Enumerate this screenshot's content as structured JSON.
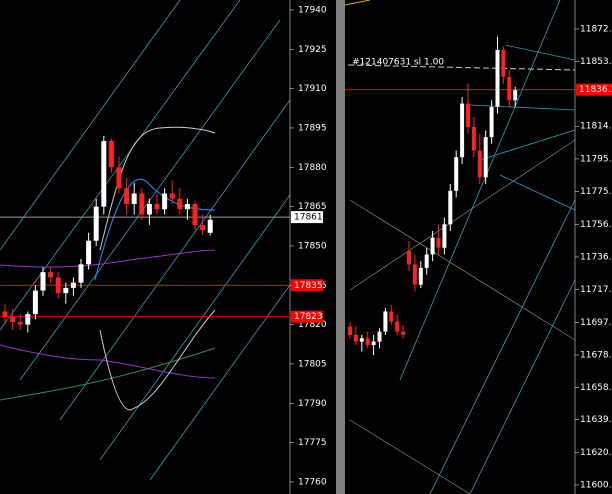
{
  "panels": [
    {
      "ylim": [
        17755.4,
        17943.8
      ],
      "yticks": [
        17940,
        17925,
        17910,
        17895,
        17880,
        17865,
        17850,
        17835,
        17820,
        17805,
        17790,
        17775,
        17760
      ],
      "tags": [
        {
          "value": 17861,
          "label": "17861",
          "color": "#ffffff"
        },
        {
          "value": 17835,
          "label": "17835",
          "color": "#ff0000"
        },
        {
          "value": 17823,
          "label": "17823",
          "color": "#ff0000"
        }
      ],
      "candles": [
        [
          17825,
          17828,
          17820,
          17823
        ],
        [
          17823,
          17826,
          17818,
          17821
        ],
        [
          17821,
          17824,
          17818,
          17820
        ],
        [
          17820,
          17825,
          17817,
          17824
        ],
        [
          17824,
          17835,
          17822,
          17833
        ],
        [
          17833,
          17842,
          17831,
          17840
        ],
        [
          17840,
          17842,
          17836,
          17838
        ],
        [
          17838,
          17840,
          17830,
          17832
        ],
        [
          17832,
          17836,
          17828,
          17834
        ],
        [
          17834,
          17838,
          17831,
          17836
        ],
        [
          17836,
          17845,
          17834,
          17843
        ],
        [
          17843,
          17855,
          17841,
          17852
        ],
        [
          17852,
          17868,
          17850,
          17865
        ],
        [
          17865,
          17892,
          17862,
          17890
        ],
        [
          17890,
          17891,
          17878,
          17880
        ],
        [
          17880,
          17884,
          17870,
          17872
        ],
        [
          17872,
          17876,
          17862,
          17866
        ],
        [
          17866,
          17874,
          17862,
          17870
        ],
        [
          17870,
          17872,
          17860,
          17862
        ],
        [
          17862,
          17868,
          17858,
          17866
        ],
        [
          17866,
          17870,
          17862,
          17864
        ],
        [
          17864,
          17872,
          17862,
          17870
        ],
        [
          17870,
          17875,
          17866,
          17868
        ],
        [
          17868,
          17872,
          17862,
          17864
        ],
        [
          17864,
          17868,
          17860,
          17866
        ],
        [
          17866,
          17867,
          17856,
          17858
        ],
        [
          17858,
          17862,
          17854,
          17856
        ],
        [
          17855,
          17862,
          17854,
          17860
        ]
      ]
    },
    {
      "ylim": [
        11595.1,
        11889.8
      ],
      "note": "#121407631 sl 1.00",
      "yticks": [
        {
          "value": 11872.5,
          "label": "11872.5"
        },
        {
          "value": 11853,
          "label": "11853.0"
        },
        {
          "value": 11814.5,
          "label": "11814.5"
        },
        {
          "value": 11795,
          "label": "11795.0"
        },
        {
          "value": 11775.5,
          "label": "11775.5"
        },
        {
          "value": 11756,
          "label": "11756.0"
        },
        {
          "value": 11736.5,
          "label": "11736.5"
        },
        {
          "value": 11717,
          "label": "11717.0"
        },
        {
          "value": 11697.5,
          "label": "11697.5"
        },
        {
          "value": 11678,
          "label": "11678.0"
        },
        {
          "value": 11658.5,
          "label": "11658.5"
        },
        {
          "value": 11639.5,
          "label": "11639.5"
        },
        {
          "value": 11620,
          "label": "11620.0"
        },
        {
          "value": 11600.5,
          "label": "11600.5"
        }
      ],
      "tags": [
        {
          "value": 11836.3,
          "label": "11836.3",
          "color": "#ff0000"
        }
      ],
      "candles": [
        [
          11695,
          11698,
          11688,
          11690
        ],
        [
          11690,
          11695,
          11684,
          11686
        ],
        [
          11686,
          11690,
          11680,
          11688
        ],
        [
          11688,
          11692,
          11682,
          11684
        ],
        [
          11684,
          11690,
          11678,
          11686
        ],
        [
          11686,
          11694,
          11682,
          11692
        ],
        [
          11692,
          11706,
          11690,
          11704
        ],
        [
          11704,
          11708,
          11696,
          11698
        ],
        [
          11698,
          11702,
          11690,
          11692
        ],
        [
          11692,
          11696,
          11688,
          11690
        ],
        [
          11740,
          11746,
          11728,
          11732
        ],
        [
          11732,
          11738,
          11716,
          11720
        ],
        [
          11720,
          11734,
          11718,
          11730
        ],
        [
          11730,
          11742,
          11726,
          11738
        ],
        [
          11738,
          11752,
          11734,
          11748
        ],
        [
          11748,
          11756,
          11738,
          11742
        ],
        [
          11742,
          11760,
          11738,
          11756
        ],
        [
          11756,
          11780,
          11752,
          11776
        ],
        [
          11776,
          11800,
          11772,
          11796
        ],
        [
          11796,
          11832,
          11792,
          11828
        ],
        [
          11828,
          11840,
          11810,
          11814
        ],
        [
          11814,
          11820,
          11796,
          11800
        ],
        [
          11800,
          11810,
          11780,
          11784
        ],
        [
          11784,
          11812,
          11780,
          11808
        ],
        [
          11808,
          11830,
          11804,
          11826
        ],
        [
          11826,
          11868,
          11822,
          11860
        ],
        [
          11860,
          11862,
          11840,
          11844
        ],
        [
          11844,
          11848,
          11826,
          11830
        ],
        [
          11830,
          11838,
          11826,
          11836
        ]
      ]
    }
  ]
}
